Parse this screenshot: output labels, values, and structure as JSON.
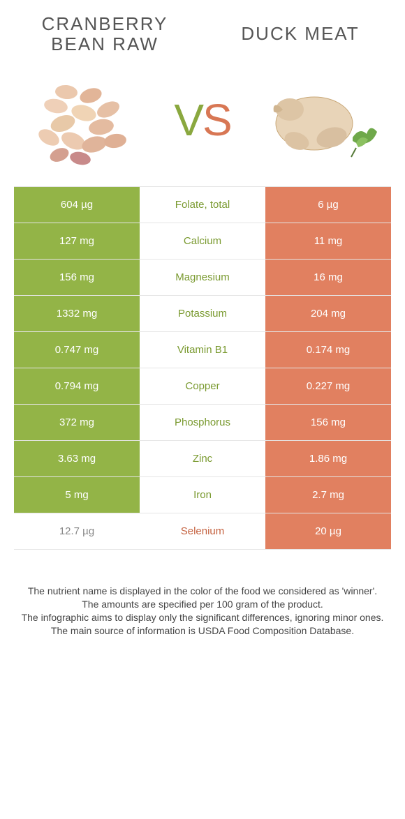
{
  "titles": {
    "left": "CRANBERRY BEAN RAW",
    "right": "DUCK MEAT"
  },
  "vs": {
    "v": "V",
    "s": "S"
  },
  "colors": {
    "green_bg": "#93b447",
    "orange_bg": "#e18060",
    "green_txt": "#7a9a30",
    "orange_txt": "#c4613f"
  },
  "rows": [
    {
      "left": "604 µg",
      "nutrient": "Folate, total",
      "right": "6 µg",
      "winner": "left"
    },
    {
      "left": "127 mg",
      "nutrient": "Calcium",
      "right": "11 mg",
      "winner": "left"
    },
    {
      "left": "156 mg",
      "nutrient": "Magnesium",
      "right": "16 mg",
      "winner": "left"
    },
    {
      "left": "1332 mg",
      "nutrient": "Potassium",
      "right": "204 mg",
      "winner": "left"
    },
    {
      "left": "0.747 mg",
      "nutrient": "Vitamin B1",
      "right": "0.174 mg",
      "winner": "left"
    },
    {
      "left": "0.794 mg",
      "nutrient": "Copper",
      "right": "0.227 mg",
      "winner": "left"
    },
    {
      "left": "372 mg",
      "nutrient": "Phosphorus",
      "right": "156 mg",
      "winner": "left"
    },
    {
      "left": "3.63 mg",
      "nutrient": "Zinc",
      "right": "1.86 mg",
      "winner": "left"
    },
    {
      "left": "5 mg",
      "nutrient": "Iron",
      "right": "2.7 mg",
      "winner": "left"
    },
    {
      "left": "12.7 µg",
      "nutrient": "Selenium",
      "right": "20 µg",
      "winner": "right"
    }
  ],
  "footer": {
    "line1": "The nutrient name is displayed in the color of the food we considered as 'winner'.",
    "line2": "The amounts are specified per 100 gram of the product.",
    "line3": "The infographic aims to display only the significant differences, ignoring minor ones.",
    "line4": "The main source of information is USDA Food Composition Database."
  }
}
